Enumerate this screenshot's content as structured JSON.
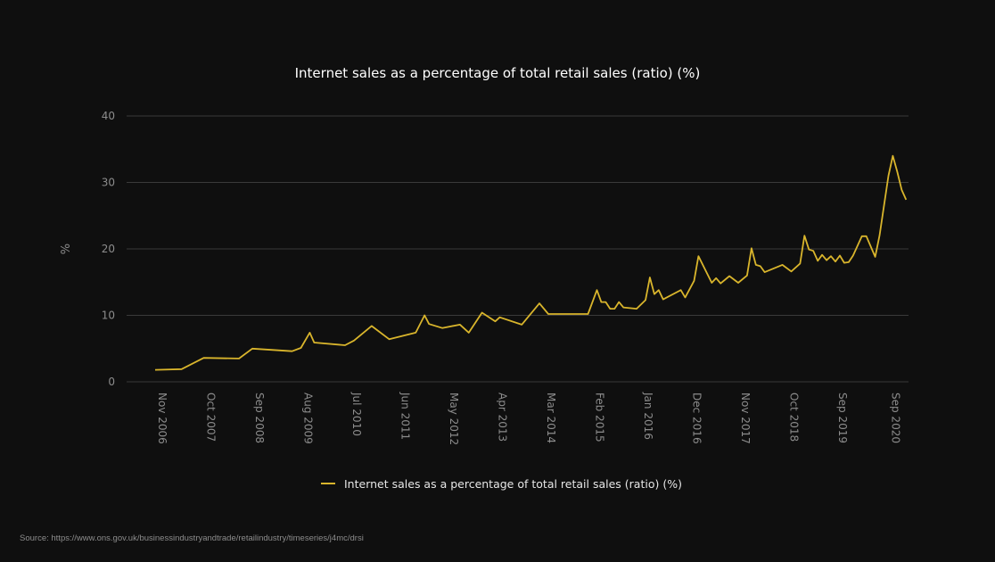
{
  "chart_data": {
    "type": "line",
    "title": "Internet sales as a percentage of total retail sales (ratio) (%)",
    "ylabel": "%",
    "xlabel": "",
    "ylim": [
      0,
      40
    ],
    "yticks": [
      0,
      10,
      20,
      30,
      40
    ],
    "grid": true,
    "legend_position": "bottom-center",
    "line_color": "#d9b52c",
    "x_tick_labels": [
      "Nov 2006",
      "Oct 2007",
      "Sep 2008",
      "Aug 2009",
      "Jul 2010",
      "Jun 2011",
      "May 2012",
      "Apr 2013",
      "Mar 2014",
      "Feb 2015",
      "Jan 2016",
      "Dec 2016",
      "Nov 2017",
      "Oct 2018",
      "Sep 2019",
      "Sep 2020"
    ],
    "series": [
      {
        "name": "Internet sales as a percentage of total retail sales (ratio) (%)",
        "points": [
          [
            "2006-11",
            1.8
          ],
          [
            "2007-05",
            1.9
          ],
          [
            "2007-10",
            3.6
          ],
          [
            "2008-06",
            3.5
          ],
          [
            "2008-09",
            5.0
          ],
          [
            "2009-06",
            4.6
          ],
          [
            "2009-08",
            5.1
          ],
          [
            "2009-10",
            7.4
          ],
          [
            "2009-11",
            5.9
          ],
          [
            "2010-06",
            5.5
          ],
          [
            "2010-08",
            6.2
          ],
          [
            "2010-12",
            8.4
          ],
          [
            "2011-04",
            6.4
          ],
          [
            "2011-10",
            7.4
          ],
          [
            "2011-12",
            10.0
          ],
          [
            "2012-01",
            8.7
          ],
          [
            "2012-04",
            8.1
          ],
          [
            "2012-08",
            8.6
          ],
          [
            "2012-10",
            7.4
          ],
          [
            "2013-01",
            10.4
          ],
          [
            "2013-04",
            9.1
          ],
          [
            "2013-05",
            9.7
          ],
          [
            "2013-10",
            8.6
          ],
          [
            "2014-02",
            11.8
          ],
          [
            "2014-04",
            10.2
          ],
          [
            "2014-10",
            10.2
          ],
          [
            "2015-01",
            10.2
          ],
          [
            "2015-03",
            13.8
          ],
          [
            "2015-04",
            12.0
          ],
          [
            "2015-05",
            12.0
          ],
          [
            "2015-06",
            11.0
          ],
          [
            "2015-07",
            11.0
          ],
          [
            "2015-08",
            12.0
          ],
          [
            "2015-09",
            11.2
          ],
          [
            "2015-12",
            11.0
          ],
          [
            "2016-02",
            12.3
          ],
          [
            "2016-03",
            15.7
          ],
          [
            "2016-04",
            13.2
          ],
          [
            "2016-05",
            13.8
          ],
          [
            "2016-06",
            12.4
          ],
          [
            "2016-10",
            13.8
          ],
          [
            "2016-11",
            12.7
          ],
          [
            "2017-01",
            15.2
          ],
          [
            "2017-02",
            18.9
          ],
          [
            "2017-05",
            14.9
          ],
          [
            "2017-06",
            15.6
          ],
          [
            "2017-07",
            14.8
          ],
          [
            "2017-09",
            15.9
          ],
          [
            "2017-11",
            14.9
          ],
          [
            "2018-01",
            16.0
          ],
          [
            "2018-02",
            20.1
          ],
          [
            "2018-03",
            17.6
          ],
          [
            "2018-04",
            17.4
          ],
          [
            "2018-05",
            16.5
          ],
          [
            "2018-09",
            17.6
          ],
          [
            "2018-11",
            16.6
          ],
          [
            "2019-01",
            17.8
          ],
          [
            "2019-02",
            22.0
          ],
          [
            "2019-03",
            19.9
          ],
          [
            "2019-04",
            19.7
          ],
          [
            "2019-05",
            18.2
          ],
          [
            "2019-06",
            19.1
          ],
          [
            "2019-07",
            18.3
          ],
          [
            "2019-08",
            18.9
          ],
          [
            "2019-09",
            18.1
          ],
          [
            "2019-10",
            19.0
          ],
          [
            "2019-11",
            17.9
          ],
          [
            "2019-12",
            18.0
          ],
          [
            "2020-01",
            19.0
          ],
          [
            "2020-03",
            21.9
          ],
          [
            "2020-04",
            21.9
          ],
          [
            "2020-06",
            18.8
          ],
          [
            "2020-07",
            22.0
          ],
          [
            "2020-09",
            31.0
          ],
          [
            "2020-10",
            34.0
          ],
          [
            "2020-11",
            31.6
          ],
          [
            "2020-12",
            28.9
          ],
          [
            "2021-01",
            27.4
          ]
        ]
      }
    ]
  },
  "source": "Source: https://www.ons.gov.uk/businessindustryandtrade/retailindustry/timeseries/j4mc/drsi"
}
